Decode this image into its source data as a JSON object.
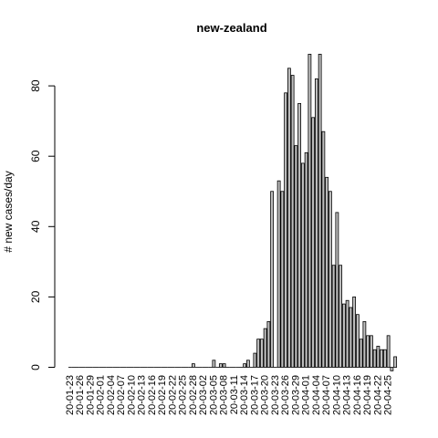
{
  "chart_data": {
    "type": "bar",
    "title": "new-zealand",
    "xlabel": "",
    "ylabel": "# new cases/day",
    "ylim": [
      0,
      90
    ],
    "yticks": [
      0,
      20,
      40,
      60,
      80
    ],
    "x_tick_labels": [
      "20-01-23",
      "20-01-26",
      "20-01-29",
      "20-02-01",
      "20-02-04",
      "20-02-07",
      "20-02-10",
      "20-02-13",
      "20-02-16",
      "20-02-19",
      "20-02-22",
      "20-02-25",
      "20-02-28",
      "20-03-02",
      "20-03-05",
      "20-03-08",
      "20-03-11",
      "20-03-14",
      "20-03-17",
      "20-03-20",
      "20-03-23",
      "20-03-26",
      "20-03-29",
      "20-04-01",
      "20-04-04",
      "20-04-07",
      "20-04-10",
      "20-04-13",
      "20-04-16",
      "20-04-19",
      "20-04-22",
      "20-04-25"
    ],
    "bar_color": "#bebebe",
    "bar_border": "#000000",
    "grid": false,
    "first_date": "20-01-23",
    "values": [
      0,
      0,
      0,
      0,
      0,
      0,
      0,
      0,
      0,
      0,
      0,
      0,
      0,
      0,
      0,
      0,
      0,
      0,
      0,
      0,
      0,
      0,
      0,
      0,
      0,
      0,
      0,
      0,
      0,
      0,
      0,
      0,
      0,
      0,
      0,
      0,
      1,
      0,
      0,
      0,
      0,
      0,
      2,
      0,
      1,
      1,
      0,
      0,
      0,
      0,
      0,
      1,
      2,
      0,
      4,
      8,
      8,
      11,
      13,
      50,
      0,
      53,
      50,
      78,
      85,
      83,
      63,
      75,
      58,
      61,
      89,
      71,
      82,
      89,
      67,
      54,
      50,
      29,
      44,
      29,
      18,
      19,
      17,
      20,
      15,
      8,
      13,
      9,
      9,
      5,
      6,
      5,
      5,
      9,
      -1,
      3
    ]
  }
}
